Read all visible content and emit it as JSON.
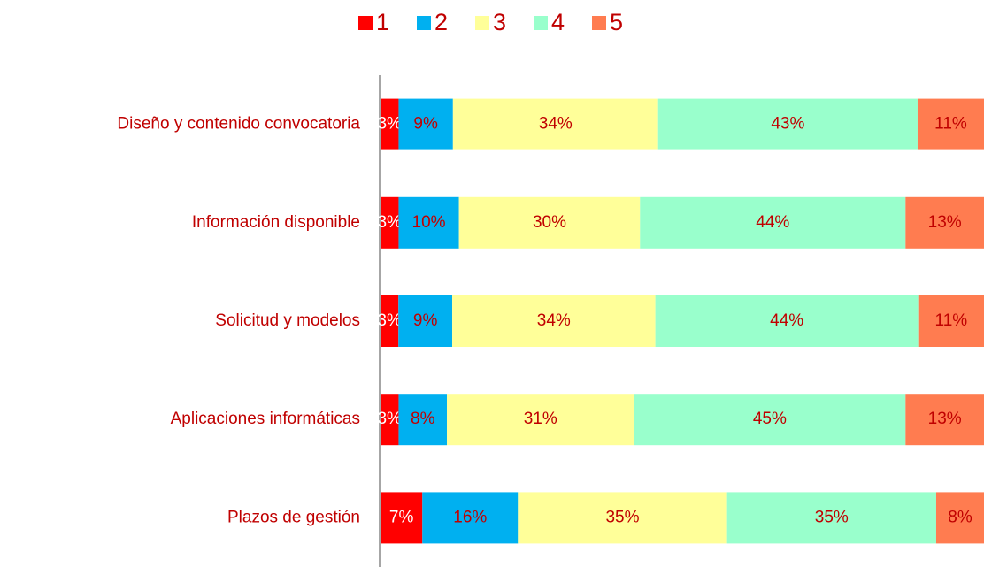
{
  "chart_data": {
    "type": "bar",
    "orientation": "horizontal",
    "stacked": true,
    "categories": [
      "Diseño y contenido convocatoria",
      "Información disponible",
      "Solicitud y modelos",
      "Aplicaciones informáticas",
      "Plazos de gestión"
    ],
    "series": [
      {
        "name": "1",
        "color": "#ff0000",
        "values": [
          3,
          3,
          3,
          3,
          7
        ],
        "value_labels": [
          "3%",
          "3%",
          "3%",
          "3%",
          "7%"
        ]
      },
      {
        "name": "2",
        "color": "#00b0f0",
        "values": [
          9,
          10,
          9,
          8,
          16
        ],
        "value_labels": [
          "9%",
          "10%",
          "9%",
          "8%",
          "16%"
        ]
      },
      {
        "name": "3",
        "color": "#ffff99",
        "values": [
          34,
          30,
          34,
          31,
          35
        ],
        "value_labels": [
          "34%",
          "30%",
          "34%",
          "31%",
          "35%"
        ]
      },
      {
        "name": "4",
        "color": "#99ffcc",
        "values": [
          43,
          44,
          44,
          45,
          35
        ],
        "value_labels": [
          "43%",
          "44%",
          "44%",
          "45%",
          "35%"
        ]
      },
      {
        "name": "5",
        "color": "#ff7c50",
        "values": [
          11,
          13,
          11,
          13,
          8
        ],
        "value_labels": [
          "11%",
          "13%",
          "11%",
          "13%",
          "8%"
        ]
      }
    ],
    "label_color": "#c00000",
    "legend": "top"
  }
}
